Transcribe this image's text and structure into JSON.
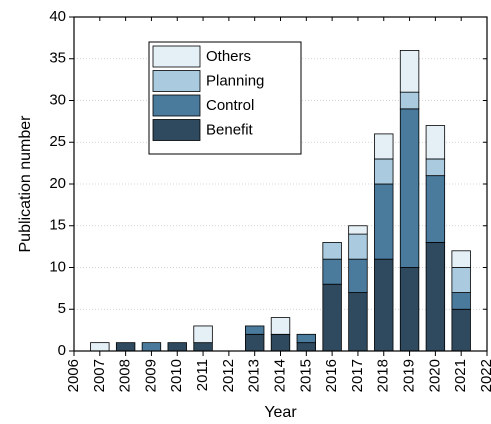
{
  "chart_data": {
    "type": "bar",
    "stacked": true,
    "xlabel": "Year",
    "ylabel": "Publication number",
    "xlim": [
      2006,
      2022
    ],
    "ylim": [
      0,
      40
    ],
    "x_ticks": [
      "2006",
      "2007",
      "2008",
      "2009",
      "2010",
      "2011",
      "2012",
      "2013",
      "2014",
      "2015",
      "2016",
      "2017",
      "2018",
      "2019",
      "2020",
      "2021",
      "2022"
    ],
    "y_ticks": [
      0,
      5,
      10,
      15,
      20,
      25,
      30,
      35,
      40
    ],
    "categories": [
      "2007",
      "2008",
      "2009",
      "2010",
      "2011",
      "2012",
      "2013",
      "2014",
      "2015",
      "2016",
      "2017",
      "2018",
      "2019",
      "2020",
      "2021"
    ],
    "series": [
      {
        "name": "Benefit",
        "color": "#2f4a5e",
        "values": [
          0,
          1,
          0,
          1,
          1,
          0,
          2,
          2,
          1,
          8,
          7,
          11,
          10,
          13,
          5
        ]
      },
      {
        "name": "Control",
        "color": "#4a7a9c",
        "values": [
          0,
          0,
          1,
          0,
          0,
          0,
          1,
          0,
          1,
          3,
          4,
          9,
          19,
          8,
          2
        ]
      },
      {
        "name": "Planning",
        "color": "#a9cadf",
        "values": [
          0,
          0,
          0,
          0,
          0,
          0,
          0,
          0,
          0,
          2,
          3,
          3,
          2,
          2,
          3
        ]
      },
      {
        "name": "Others",
        "color": "#e4eff6",
        "values": [
          1,
          0,
          0,
          0,
          2,
          0,
          0,
          2,
          0,
          0,
          1,
          3,
          5,
          4,
          2
        ]
      }
    ],
    "legend_order": [
      "Others",
      "Planning",
      "Control",
      "Benefit"
    ],
    "legend_position": "upper-left",
    "grid": "horizontal-dotted"
  }
}
